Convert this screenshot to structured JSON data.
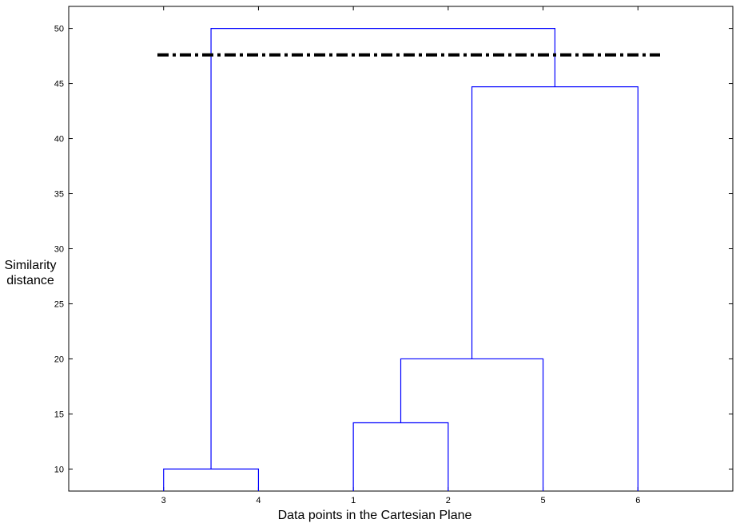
{
  "chart_data": {
    "type": "dendrogram",
    "xlabel": "Data points in the Cartesian Plane",
    "ylabel_lines": [
      "Similarity",
      "distance"
    ],
    "ylim": [
      8,
      52
    ],
    "yticks": [
      10,
      15,
      20,
      25,
      30,
      35,
      40,
      45,
      50
    ],
    "leaf_order": [
      "3",
      "4",
      "1",
      "2",
      "5",
      "6"
    ],
    "merges": [
      {
        "left": "3",
        "right": "4",
        "height": 10
      },
      {
        "left": "1",
        "right": "2",
        "height": 14.2
      },
      {
        "left": "1-2",
        "right": "5",
        "height": 20
      },
      {
        "left": "1-2-5",
        "right": "6",
        "height": 44.7
      },
      {
        "left": "3-4",
        "right": "1-2-5-6",
        "height": 50
      }
    ],
    "cut_line": {
      "value": 47.6,
      "style": "dash-dot"
    },
    "grid": false,
    "colors": {
      "links": "#0000ff",
      "cut_line": "#000000",
      "axes": "#000000"
    }
  }
}
